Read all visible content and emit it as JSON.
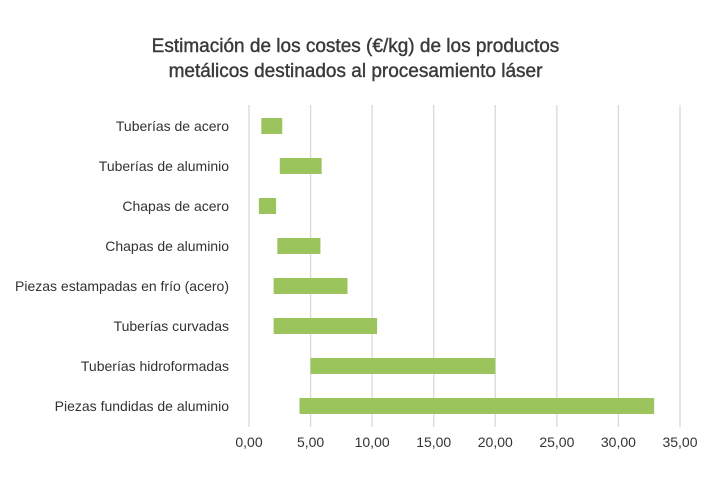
{
  "chart_data": {
    "type": "bar",
    "orientation": "horizontal-floating",
    "title": [
      "Estimación de los costes (€/kg) de los productos",
      "metálicos destinados al procesamiento láser"
    ],
    "xlabel": "",
    "ylabel": "",
    "xlim": [
      0,
      35
    ],
    "xticks": [
      0,
      5,
      10,
      15,
      20,
      25,
      30,
      35
    ],
    "xtick_labels": [
      "0,00",
      "5,00",
      "10,00",
      "15,00",
      "20,00",
      "25,00",
      "30,00",
      "35,00"
    ],
    "grid": "vertical",
    "categories": [
      "Tuberías de acero",
      "Tuberías de aluminio",
      "Chapas de acero",
      "Chapas de aluminio",
      "Piezas estampadas en frío (acero)",
      "Tuberías curvadas",
      "Tuberías hidroformadas",
      "Piezas fundidas de aluminio"
    ],
    "series": [
      {
        "name": "min",
        "values": [
          1.0,
          2.5,
          0.8,
          2.3,
          2.0,
          2.0,
          5.0,
          4.1
        ]
      },
      {
        "name": "max",
        "values": [
          2.7,
          5.9,
          2.2,
          5.8,
          8.0,
          10.4,
          20.0,
          32.9
        ]
      }
    ],
    "colors": {
      "bar": "#9bc45c",
      "grid": "#d9d9d9"
    }
  }
}
